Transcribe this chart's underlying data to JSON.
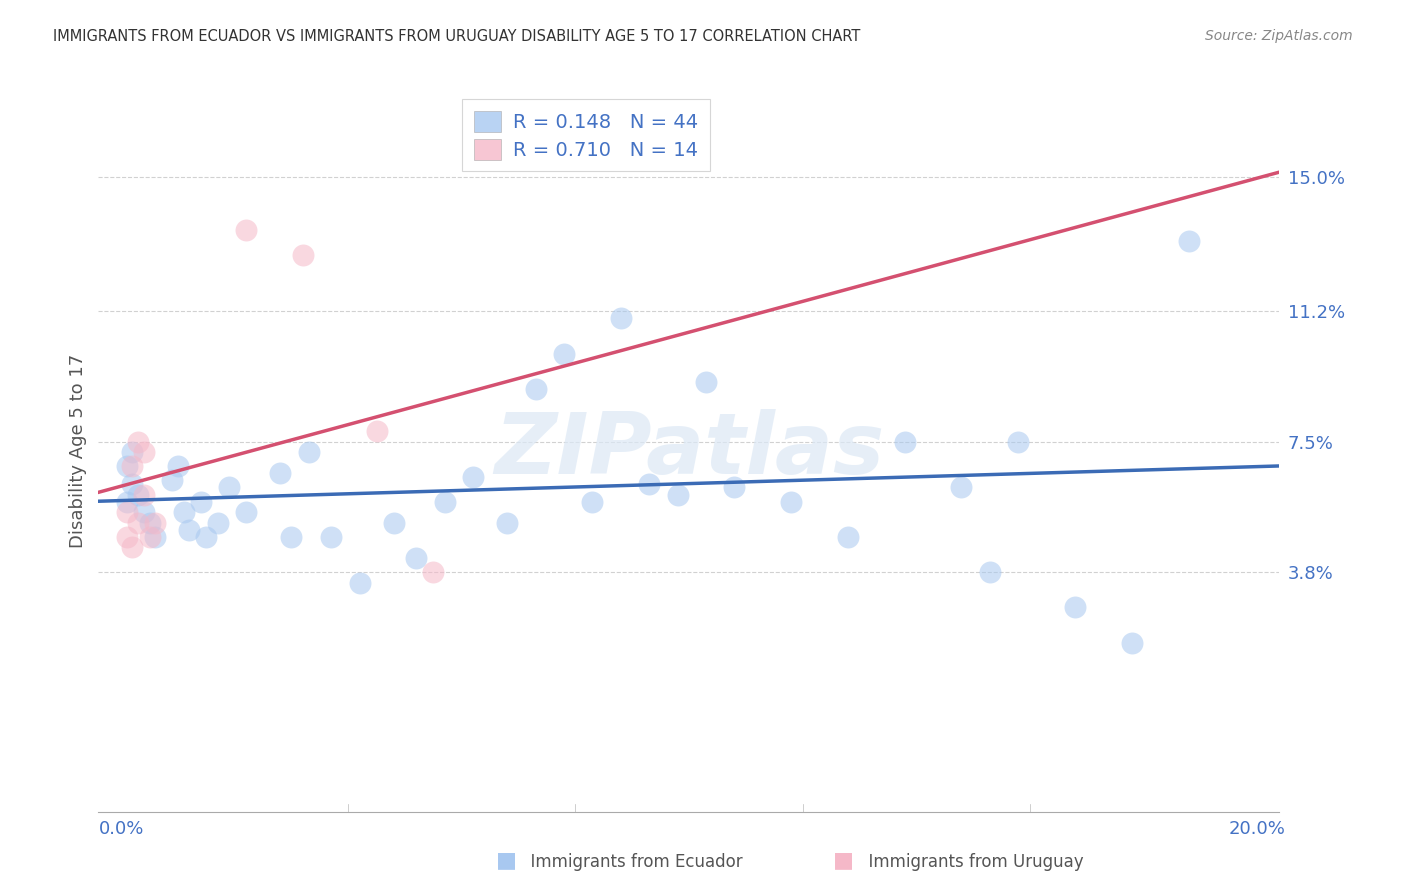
{
  "title": "IMMIGRANTS FROM ECUADOR VS IMMIGRANTS FROM URUGUAY DISABILITY AGE 5 TO 17 CORRELATION CHART",
  "source": "Source: ZipAtlas.com",
  "ylabel": "Disability Age 5 to 17",
  "color_ecuador": "#A8C8F0",
  "color_uruguay": "#F5B8C8",
  "color_line_ecuador": "#3B6BB5",
  "color_line_uruguay": "#D45070",
  "legend_r1": "R = 0.148",
  "legend_n1": "N = 44",
  "legend_r2": "R = 0.710",
  "legend_n2": "N = 14",
  "watermark": "ZIPatlas",
  "legend_label_ecuador": "Immigrants from Ecuador",
  "legend_label_uruguay": "Immigrants from Uruguay",
  "ecuador_x": [
    0.001,
    0.001,
    0.002,
    0.002,
    0.003,
    0.004,
    0.005,
    0.006,
    0.009,
    0.01,
    0.011,
    0.012,
    0.014,
    0.015,
    0.017,
    0.019,
    0.022,
    0.028,
    0.03,
    0.033,
    0.037,
    0.042,
    0.048,
    0.052,
    0.057,
    0.062,
    0.068,
    0.073,
    0.078,
    0.083,
    0.088,
    0.093,
    0.098,
    0.103,
    0.108,
    0.118,
    0.128,
    0.138,
    0.148,
    0.153,
    0.158,
    0.168,
    0.178,
    0.188
  ],
  "ecuador_y": [
    0.068,
    0.058,
    0.072,
    0.063,
    0.06,
    0.055,
    0.052,
    0.048,
    0.064,
    0.068,
    0.055,
    0.05,
    0.058,
    0.048,
    0.052,
    0.062,
    0.055,
    0.066,
    0.048,
    0.072,
    0.048,
    0.035,
    0.052,
    0.042,
    0.058,
    0.065,
    0.052,
    0.09,
    0.1,
    0.058,
    0.11,
    0.063,
    0.06,
    0.092,
    0.062,
    0.058,
    0.048,
    0.075,
    0.062,
    0.038,
    0.075,
    0.028,
    0.018,
    0.132
  ],
  "uruguay_x": [
    0.001,
    0.001,
    0.002,
    0.002,
    0.003,
    0.003,
    0.004,
    0.004,
    0.005,
    0.006,
    0.022,
    0.032,
    0.045,
    0.055
  ],
  "uruguay_y": [
    0.048,
    0.055,
    0.045,
    0.068,
    0.052,
    0.075,
    0.072,
    0.06,
    0.048,
    0.052,
    0.135,
    0.128,
    0.078,
    0.038
  ],
  "xlim": [
    -0.004,
    0.204
  ],
  "ylim": [
    -0.03,
    0.175
  ],
  "ytick_vals": [
    0.038,
    0.075,
    0.112,
    0.15
  ],
  "ytick_labels": [
    "3.8%",
    "7.5%",
    "11.2%",
    "15.0%"
  ],
  "xtick_vals": [
    0.0,
    0.04,
    0.08,
    0.12,
    0.16,
    0.2
  ],
  "xtick_labels": [
    "0.0%",
    "",
    "",
    "",
    "",
    "20.0%"
  ]
}
